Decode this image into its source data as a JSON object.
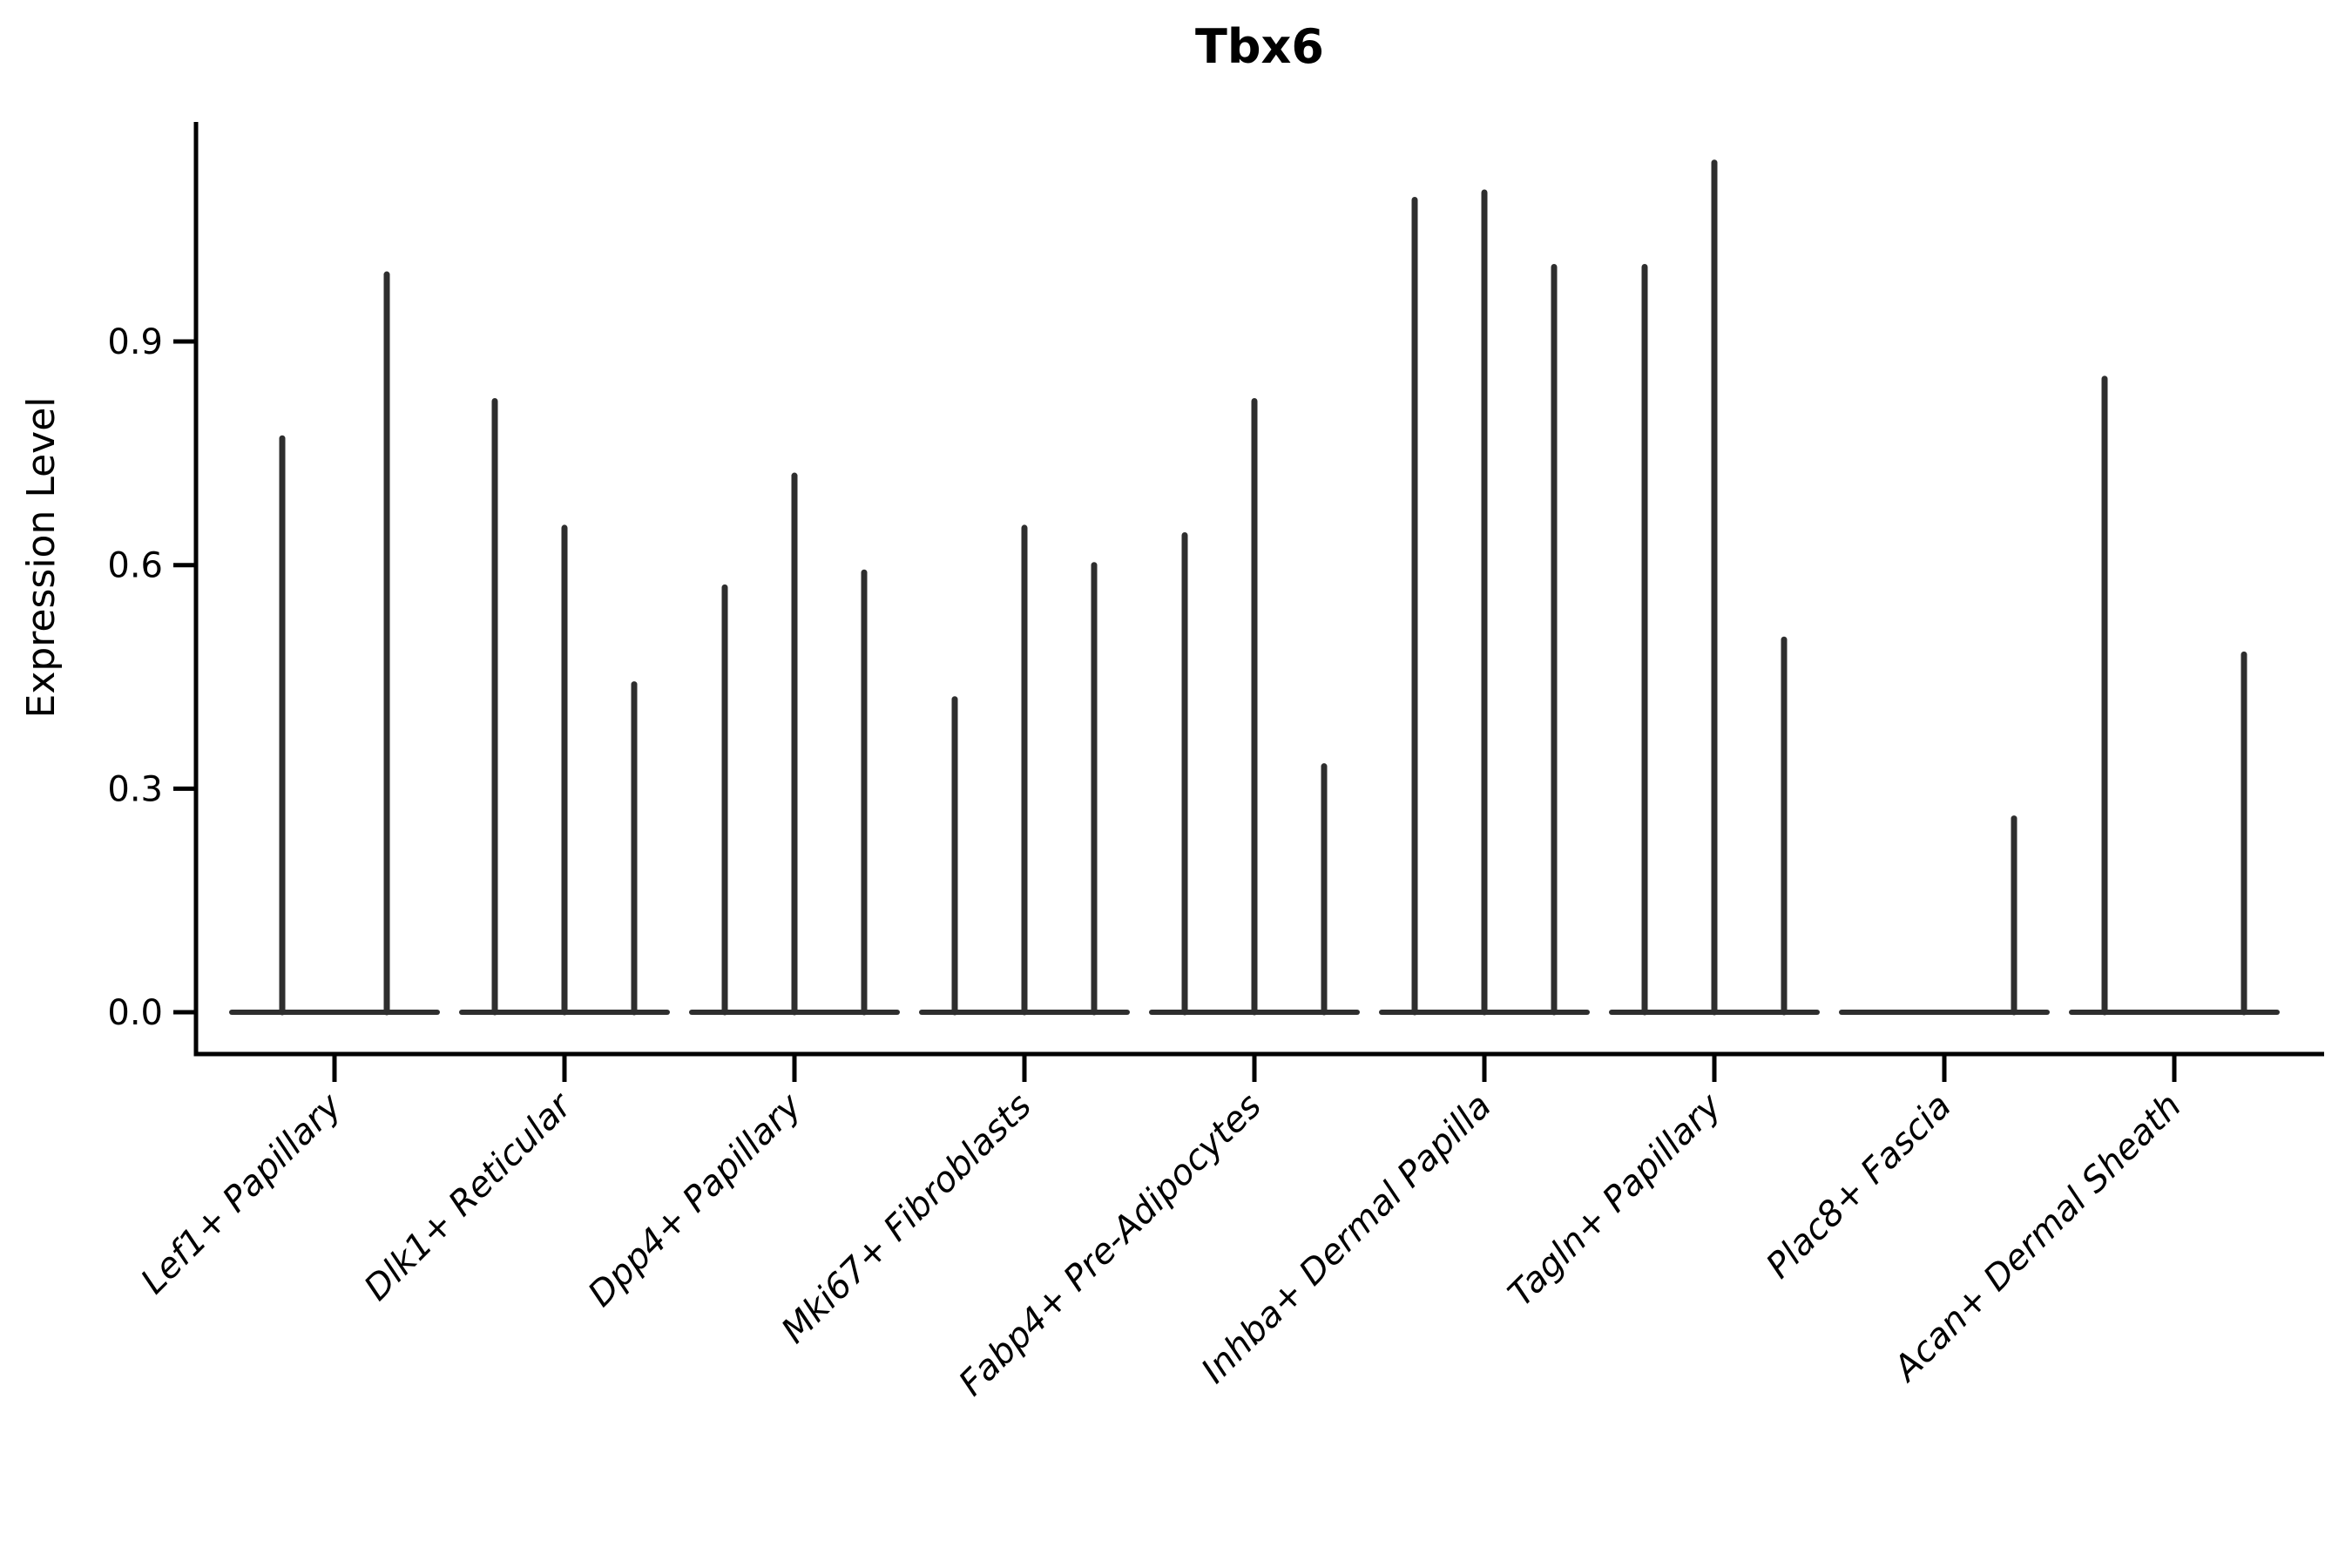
{
  "chart_data": {
    "type": "violin",
    "title": "Tbx6",
    "ylabel": "Expression Level",
    "xlabel": "",
    "ylim": [
      0,
      1.2
    ],
    "yticks": [
      0.0,
      0.3,
      0.6,
      0.9
    ],
    "ytick_labels": [
      "0.0",
      "0.3",
      "0.6",
      "0.9"
    ],
    "grid": false,
    "legend_position": "none",
    "categories": [
      "Lef1+ Papillary",
      "Dlk1+ Reticular",
      "Dpp4+ Papillary",
      "Mki67+ Fibroblasts",
      "Fabp4+ Pre-Adipocytes",
      "Inhba+ Dermal Papilla",
      "Tagln+ Papillary",
      "Plac8+ Fascia",
      "Acan+ Dermal Sheath"
    ],
    "series": [
      {
        "category": "Lef1+ Papillary",
        "violins": [
          {
            "pos": -60,
            "max": 0.77
          },
          {
            "pos": 60,
            "max": 0.99
          }
        ]
      },
      {
        "category": "Dlk1+ Reticular",
        "violins": [
          {
            "pos": -80,
            "max": 0.82
          },
          {
            "pos": 0,
            "max": 0.65
          },
          {
            "pos": 80,
            "max": 0.44
          }
        ]
      },
      {
        "category": "Dpp4+ Papillary",
        "violins": [
          {
            "pos": -80,
            "max": 0.57
          },
          {
            "pos": 0,
            "max": 0.72
          },
          {
            "pos": 80,
            "max": 0.59
          }
        ]
      },
      {
        "category": "Mki67+ Fibroblasts",
        "violins": [
          {
            "pos": -80,
            "max": 0.42
          },
          {
            "pos": 0,
            "max": 0.65
          },
          {
            "pos": 80,
            "max": 0.6
          }
        ]
      },
      {
        "category": "Fabp4+ Pre-Adipocytes",
        "violins": [
          {
            "pos": -80,
            "max": 0.64
          },
          {
            "pos": 0,
            "max": 0.82
          },
          {
            "pos": 80,
            "max": 0.33
          }
        ]
      },
      {
        "category": "Inhba+ Dermal Papilla",
        "violins": [
          {
            "pos": -80,
            "max": 1.09
          },
          {
            "pos": 0,
            "max": 1.1
          },
          {
            "pos": 80,
            "max": 1.0
          }
        ]
      },
      {
        "category": "Tagln+ Papillary",
        "violins": [
          {
            "pos": -80,
            "max": 1.0
          },
          {
            "pos": 0,
            "max": 1.14
          },
          {
            "pos": 80,
            "max": 0.5
          }
        ]
      },
      {
        "category": "Plac8+ Fascia",
        "violins": [
          {
            "pos": 80,
            "max": 0.26
          }
        ]
      },
      {
        "category": "Acan+ Dermal Sheath",
        "violins": [
          {
            "pos": -80,
            "max": 0.85
          },
          {
            "pos": 80,
            "max": 0.48
          }
        ]
      }
    ],
    "colors": {
      "violin": "#2e2e2e",
      "axis": "#000000",
      "text": "#000000",
      "background": "#ffffff"
    }
  }
}
